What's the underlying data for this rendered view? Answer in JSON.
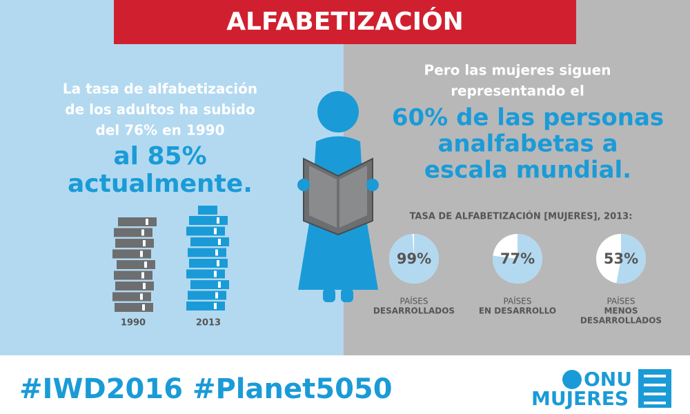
{
  "header": {
    "title": "ALFABETIZACIÓN"
  },
  "left": {
    "lines": [
      "La tasa de alfabetización",
      "de los adultos ha subido",
      "del 76% en 1990"
    ],
    "highlight": [
      "al 85%",
      "actualmente."
    ],
    "stacks": [
      "1990",
      "2013"
    ]
  },
  "right": {
    "lines": [
      "Pero las mujeres siguen",
      "representando el"
    ],
    "highlight": [
      "60% de las personas",
      "analfabetas a",
      "escala mundial."
    ],
    "chart_title": "TASA DE ALFABETIZACIÓN [MUJERES], 2013:",
    "pies": [
      {
        "value": 99,
        "label": "99%",
        "caption": [
          "PAÍSES",
          "DESARROLLADOS"
        ]
      },
      {
        "value": 77,
        "label": "77%",
        "caption": [
          "PAÍSES",
          "EN DESARROLLO"
        ]
      },
      {
        "value": 53,
        "label": "53%",
        "caption": [
          "PAÍSES",
          "MENOS",
          "DESARROLLADOS"
        ]
      }
    ]
  },
  "footer": {
    "hashtags": "#IWD2016 #Planet5050",
    "logo": [
      "ONU",
      "MUJERES"
    ]
  }
}
